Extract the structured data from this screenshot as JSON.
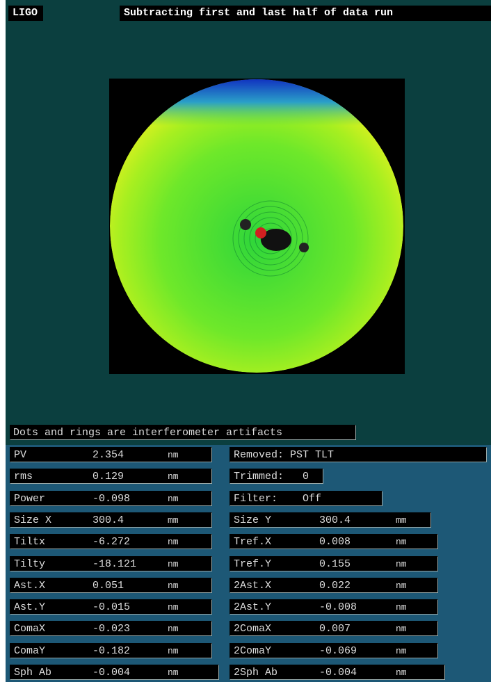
{
  "header": {
    "logo": "LIGO",
    "title": "Subtracting first and last half of data run"
  },
  "caption": "Dots and rings are interferometer artifacts",
  "left_rows": [
    {
      "label": "PV",
      "value": "2.354",
      "unit": "nm"
    },
    {
      "label": "rms",
      "value": "0.129",
      "unit": "nm"
    },
    {
      "label": "Power",
      "value": "-0.098",
      "unit": "nm"
    },
    {
      "label": "Size X",
      "value": "300.4",
      "unit": "mm"
    },
    {
      "label": "Tiltx",
      "value": "-6.272",
      "unit": "nm"
    },
    {
      "label": "Tilty",
      "value": "-18.121",
      "unit": "nm"
    },
    {
      "label": "Ast.X",
      "value": "0.051",
      "unit": "nm"
    },
    {
      "label": "Ast.Y",
      "value": "-0.015",
      "unit": "nm"
    },
    {
      "label": "ComaX",
      "value": "-0.023",
      "unit": "nm"
    },
    {
      "label": "ComaY",
      "value": "-0.182",
      "unit": "nm"
    },
    {
      "label": "Sph Ab",
      "value": "-0.004",
      "unit": "nm"
    }
  ],
  "right_rows": [
    {
      "label": "Removed: PST TLT"
    },
    {
      "label": "Trimmed:",
      "value": "0"
    },
    {
      "label": "Filter:",
      "value": "Off"
    },
    {
      "label": "Size Y",
      "value": "300.4",
      "unit": "mm"
    },
    {
      "label": "Tref.X",
      "value": "0.008",
      "unit": "nm"
    },
    {
      "label": "Tref.Y",
      "value": "0.155",
      "unit": "nm"
    },
    {
      "label": "2Ast.X",
      "value": "0.022",
      "unit": "nm"
    },
    {
      "label": "2Ast.Y",
      "value": "-0.008",
      "unit": "nm"
    },
    {
      "label": "2ComaX",
      "value": "0.007",
      "unit": "nm"
    },
    {
      "label": "2ComaY",
      "value": "-0.069",
      "unit": "nm"
    },
    {
      "label": "2Sph Ab",
      "value": "-0.004",
      "unit": "nm"
    }
  ]
}
